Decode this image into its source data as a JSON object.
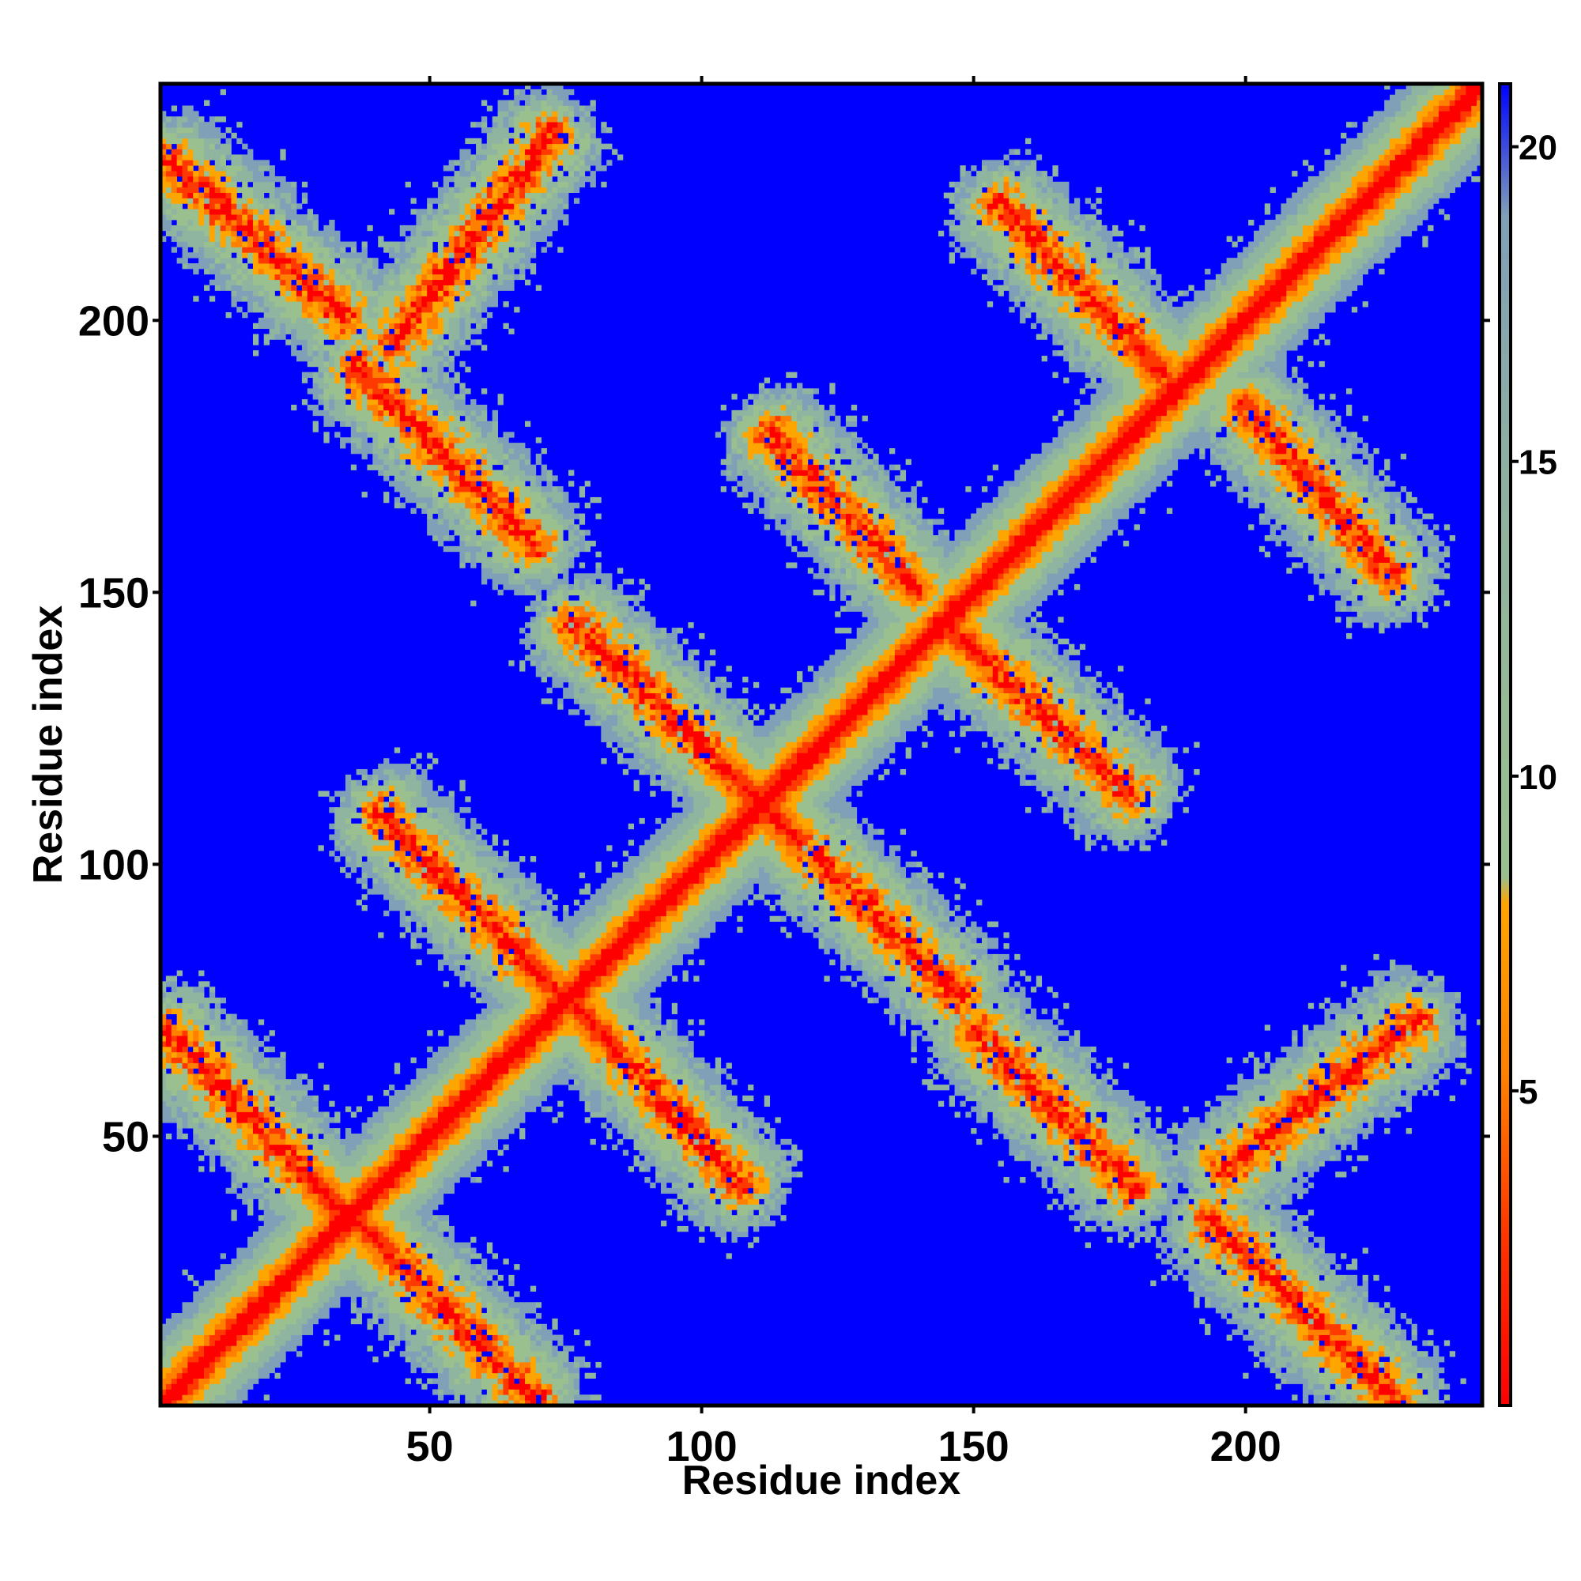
{
  "chart_data": {
    "type": "heatmap",
    "title": "",
    "xlabel": "Residue index",
    "ylabel": "Residue index",
    "xlim": [
      1,
      243
    ],
    "ylim": [
      1,
      243
    ],
    "x_ticks": [
      50,
      100,
      150,
      200
    ],
    "y_ticks": [
      50,
      100,
      150,
      200
    ],
    "x_tick_labels": [
      "50",
      "100",
      "150",
      "200"
    ],
    "y_tick_labels": [
      "50",
      "100",
      "150",
      "200"
    ],
    "colorbar": {
      "range": [
        0,
        21
      ],
      "ticks": [
        5,
        10,
        15,
        20
      ],
      "tick_labels": [
        "5",
        "10",
        "15",
        "20"
      ],
      "colors": {
        "low": "#ff0000",
        "mid_low": "#ff8000",
        "mid": "#ffa500",
        "mid_high": "#9bc08f",
        "high": "#80a0b8",
        "background": "#0000ff"
      }
    },
    "diagonal": "distance ~0 along residue i = residue j (red core, orange/green halo)",
    "off_diagonal_bands": [
      {
        "kind": "antiparallel",
        "x": [
          1,
          35
        ],
        "y": [
          200,
          230
        ]
      },
      {
        "kind": "parallel",
        "x": [
          43,
          73
        ],
        "y": [
          195,
          235
        ]
      },
      {
        "kind": "antiparallel",
        "x": [
          36,
          70
        ],
        "y": [
          158,
          192
        ]
      },
      {
        "kind": "antiparallel",
        "x": [
          76,
          112
        ],
        "y": [
          110,
          145
        ]
      },
      {
        "kind": "antiparallel",
        "x": [
          112,
          140
        ],
        "y": [
          150,
          180
        ]
      },
      {
        "kind": "antiparallel",
        "x": [
          154,
          185
        ],
        "y": [
          190,
          222
        ]
      },
      {
        "kind": "antiparallel",
        "x": [
          199,
          228
        ],
        "y": [
          152,
          185
        ]
      },
      {
        "kind": "antiparallel",
        "x": [
          144,
          180
        ],
        "y": [
          112,
          145
        ]
      },
      {
        "kind": "antiparallel",
        "x": [
          40,
          75
        ],
        "y": [
          75,
          110
        ]
      },
      {
        "kind": "antiparallel",
        "x": [
          112,
          148
        ],
        "y": [
          75,
          110
        ]
      },
      {
        "kind": "antiparallel",
        "x": [
          1,
          35
        ],
        "y": [
          35,
          70
        ]
      },
      {
        "kind": "antiparallel",
        "x": [
          36,
          70
        ],
        "y": [
          1,
          35
        ]
      },
      {
        "kind": "antiparallel",
        "x": [
          76,
          108
        ],
        "y": [
          40,
          75
        ]
      },
      {
        "kind": "antiparallel",
        "x": [
          150,
          180
        ],
        "y": [
          40,
          70
        ]
      },
      {
        "kind": "antiparallel",
        "x": [
          193,
          228
        ],
        "y": [
          1,
          35
        ]
      },
      {
        "kind": "parallel",
        "x": [
          195,
          232
        ],
        "y": [
          43,
          72
        ]
      }
    ]
  }
}
